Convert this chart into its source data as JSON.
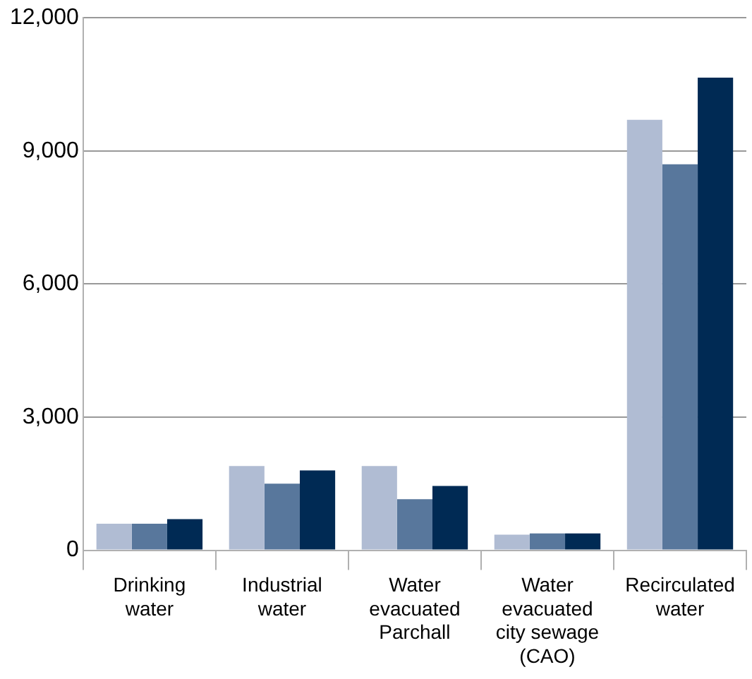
{
  "chart_data": {
    "type": "bar",
    "categories": [
      "Drinking water",
      "Industrial water",
      "Water evacuated Parchall",
      "Water evacuated city sewage (CAO)",
      "Recirculated water"
    ],
    "series": [
      {
        "color": "#b0bcd3",
        "values": [
          600,
          1900,
          1900,
          350,
          9700
        ]
      },
      {
        "color": "#58779c",
        "values": [
          600,
          1500,
          1150,
          380,
          8700
        ]
      },
      {
        "color": "#002a54",
        "values": [
          700,
          1800,
          1450,
          380,
          10650
        ]
      }
    ],
    "ylim": [
      0,
      12000
    ],
    "yticks": [
      {
        "value": 0,
        "label": "0"
      },
      {
        "value": 3000,
        "label": "3,000"
      },
      {
        "value": 6000,
        "label": "6,000"
      },
      {
        "value": 9000,
        "label": "9,000"
      },
      {
        "value": 12000,
        "label": "12,000"
      }
    ],
    "grid": "y",
    "legend": false
  }
}
